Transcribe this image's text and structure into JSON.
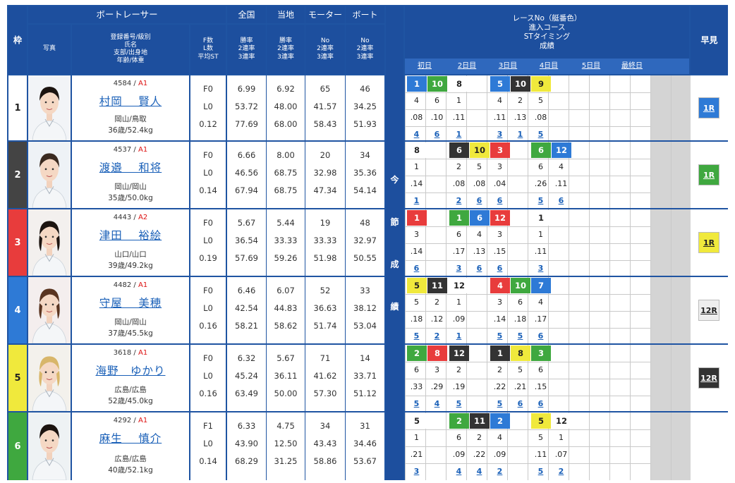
{
  "header": {
    "waku": "枠",
    "racer": "ボートレーサー",
    "zenkoku": "全国",
    "touchi": "当地",
    "motor": "モーター",
    "boat": "ボート",
    "race_title": "レースNo（艇番色）\n進入コース\nSTタイミング\n成績",
    "hayami": "早見",
    "photo": "写真",
    "info_sub": "登録番号/級別\n氏名\n支部/出身地\n年齢/体重",
    "flst_sub": "F数\nL数\n平均ST",
    "rate_sub": "勝率\n2連率\n3連率",
    "motor_sub": "No\n2連率\n3連率",
    "boat_sub": "No\n2連率\n3連率",
    "konsetsu": "今\n節\n成\n績",
    "days": [
      "初日",
      "2日目",
      "3日目",
      "4日目",
      "5日目",
      "最終日"
    ]
  },
  "colors": {
    "1": "#ffffff",
    "2": "#333333",
    "3": "#e83c3c",
    "4": "#2e7ad6",
    "5": "#f0e93c",
    "6": "#3fa83f"
  },
  "racers": [
    {
      "waku": "1",
      "reg": "4584",
      "cls": "A1",
      "name": "村岡　 賢人",
      "branch": "岡山/鳥取",
      "agew": "36歳/52.4kg",
      "f": "F0",
      "l": "L0",
      "st": "0.12",
      "nat": [
        "6.99",
        "53.72",
        "77.69"
      ],
      "loc": [
        "6.92",
        "48.00",
        "68.00"
      ],
      "mot": [
        "65",
        "41.57",
        "58.43"
      ],
      "boat": [
        "46",
        "34.25",
        "51.93"
      ],
      "hayami": "1R",
      "hayami_color": "#2e7ad6",
      "races": [
        [
          "1",
          "10"
        ],
        [
          "8",
          ""
        ],
        [
          "5",
          "10"
        ],
        [
          "9",
          ""
        ]
      ],
      "course": [
        [
          "4",
          "6"
        ],
        [
          "1",
          ""
        ],
        [
          "4",
          "2"
        ],
        [
          "5",
          ""
        ]
      ],
      "sttm": [
        [
          ".08",
          ".10"
        ],
        [
          ".11",
          ""
        ],
        [
          ".11",
          ".13"
        ],
        [
          ".08",
          ""
        ]
      ],
      "rank": [
        [
          "4",
          "6"
        ],
        [
          "1",
          ""
        ],
        [
          "3",
          "1"
        ],
        [
          "5",
          ""
        ]
      ]
    },
    {
      "waku": "2",
      "reg": "4537",
      "cls": "A1",
      "name": "渡邉　 和将",
      "branch": "岡山/岡山",
      "agew": "35歳/50.0kg",
      "f": "F0",
      "l": "L0",
      "st": "0.14",
      "nat": [
        "6.66",
        "46.56",
        "67.94"
      ],
      "loc": [
        "8.00",
        "68.75",
        "68.75"
      ],
      "mot": [
        "20",
        "32.98",
        "47.34"
      ],
      "boat": [
        "34",
        "35.36",
        "54.14"
      ],
      "hayami": "1R",
      "hayami_color": "#3fa83f",
      "races": [
        [
          "8",
          ""
        ],
        [
          "6",
          "10"
        ],
        [
          "3",
          ""
        ],
        [
          "6",
          "12"
        ]
      ],
      "course": [
        [
          "1",
          ""
        ],
        [
          "2",
          "5"
        ],
        [
          "3",
          ""
        ],
        [
          "6",
          "4"
        ]
      ],
      "sttm": [
        [
          ".14",
          ""
        ],
        [
          ".08",
          ".08"
        ],
        [
          ".04",
          ""
        ],
        [
          ".26",
          ".11"
        ]
      ],
      "rank": [
        [
          "1",
          ""
        ],
        [
          "2",
          "6"
        ],
        [
          "6",
          ""
        ],
        [
          "5",
          "6"
        ]
      ]
    },
    {
      "waku": "3",
      "reg": "4443",
      "cls": "A2",
      "name": "津田　 裕絵",
      "branch": "山口/山口",
      "agew": "39歳/49.2kg",
      "f": "F0",
      "l": "L0",
      "st": "0.19",
      "nat": [
        "5.67",
        "36.54",
        "57.69"
      ],
      "loc": [
        "5.44",
        "33.33",
        "59.26"
      ],
      "mot": [
        "19",
        "33.33",
        "51.98"
      ],
      "boat": [
        "48",
        "32.97",
        "50.55"
      ],
      "hayami": "1R",
      "hayami_color": "#f0e93c",
      "races": [
        [
          "1",
          ""
        ],
        [
          "1",
          "6"
        ],
        [
          "12",
          ""
        ],
        [
          "1",
          ""
        ]
      ],
      "course": [
        [
          "3",
          ""
        ],
        [
          "6",
          "4"
        ],
        [
          "3",
          ""
        ],
        [
          "1",
          ""
        ]
      ],
      "sttm": [
        [
          ".14",
          ""
        ],
        [
          ".17",
          ".13"
        ],
        [
          ".15",
          ""
        ],
        [
          ".11",
          ""
        ]
      ],
      "rank": [
        [
          "6",
          ""
        ],
        [
          "3",
          "6"
        ],
        [
          "6",
          ""
        ],
        [
          "3",
          ""
        ]
      ]
    },
    {
      "waku": "4",
      "reg": "4482",
      "cls": "A1",
      "name": "守屋　 美穂",
      "branch": "岡山/岡山",
      "agew": "37歳/45.5kg",
      "f": "F0",
      "l": "L0",
      "st": "0.16",
      "nat": [
        "6.46",
        "42.54",
        "58.21"
      ],
      "loc": [
        "6.07",
        "44.83",
        "58.62"
      ],
      "mot": [
        "52",
        "36.63",
        "51.74"
      ],
      "boat": [
        "33",
        "38.12",
        "53.04"
      ],
      "hayami": "12R",
      "hayami_color": "#eeeeee",
      "races": [
        [
          "5",
          "11"
        ],
        [
          "12",
          ""
        ],
        [
          "4",
          "10"
        ],
        [
          "7",
          ""
        ]
      ],
      "course": [
        [
          "5",
          "2"
        ],
        [
          "1",
          ""
        ],
        [
          "3",
          "6"
        ],
        [
          "4",
          ""
        ]
      ],
      "sttm": [
        [
          ".18",
          ".12"
        ],
        [
          ".09",
          ""
        ],
        [
          ".14",
          ".18"
        ],
        [
          ".17",
          ""
        ]
      ],
      "rank": [
        [
          "5",
          "2"
        ],
        [
          "1",
          ""
        ],
        [
          "5",
          "5"
        ],
        [
          "6",
          ""
        ]
      ]
    },
    {
      "waku": "5",
      "reg": "3618",
      "cls": "A1",
      "name": "海野　ゆかり",
      "branch": "広島/広島",
      "agew": "52歳/45.0kg",
      "f": "F0",
      "l": "L0",
      "st": "0.16",
      "nat": [
        "6.32",
        "45.24",
        "63.49"
      ],
      "loc": [
        "5.67",
        "36.11",
        "50.00"
      ],
      "mot": [
        "71",
        "41.62",
        "57.30"
      ],
      "boat": [
        "14",
        "33.71",
        "51.12"
      ],
      "hayami": "12R",
      "hayami_color": "#333333",
      "races": [
        [
          "2",
          "8"
        ],
        [
          "12",
          ""
        ],
        [
          "1",
          "8"
        ],
        [
          "3",
          ""
        ]
      ],
      "course": [
        [
          "6",
          "3"
        ],
        [
          "2",
          ""
        ],
        [
          "2",
          "5"
        ],
        [
          "6",
          ""
        ]
      ],
      "sttm": [
        [
          ".33",
          ".29"
        ],
        [
          ".19",
          ""
        ],
        [
          ".22",
          ".21"
        ],
        [
          ".15",
          ""
        ]
      ],
      "rank": [
        [
          "5",
          "4"
        ],
        [
          "5",
          ""
        ],
        [
          "5",
          "6"
        ],
        [
          "6",
          ""
        ]
      ]
    },
    {
      "waku": "6",
      "reg": "4292",
      "cls": "A1",
      "name": "麻生　 慎介",
      "branch": "広島/広島",
      "agew": "40歳/52.1kg",
      "f": "F1",
      "l": "L0",
      "st": "0.14",
      "nat": [
        "6.33",
        "43.90",
        "68.29"
      ],
      "loc": [
        "4.75",
        "12.50",
        "31.25"
      ],
      "mot": [
        "34",
        "43.43",
        "58.86"
      ],
      "boat": [
        "31",
        "34.46",
        "53.67"
      ],
      "hayami": "",
      "hayami_color": "",
      "races": [
        [
          "5",
          ""
        ],
        [
          "2",
          "11"
        ],
        [
          "2",
          ""
        ],
        [
          "5",
          "12"
        ]
      ],
      "course": [
        [
          "1",
          ""
        ],
        [
          "6",
          "2"
        ],
        [
          "4",
          ""
        ],
        [
          "5",
          "1"
        ]
      ],
      "sttm": [
        [
          ".21",
          ""
        ],
        [
          ".09",
          ".22"
        ],
        [
          ".09",
          ""
        ],
        [
          ".11",
          ".07"
        ]
      ],
      "rank": [
        [
          "3",
          ""
        ],
        [
          "4",
          "4"
        ],
        [
          "2",
          ""
        ],
        [
          "5",
          "2"
        ]
      ]
    }
  ]
}
